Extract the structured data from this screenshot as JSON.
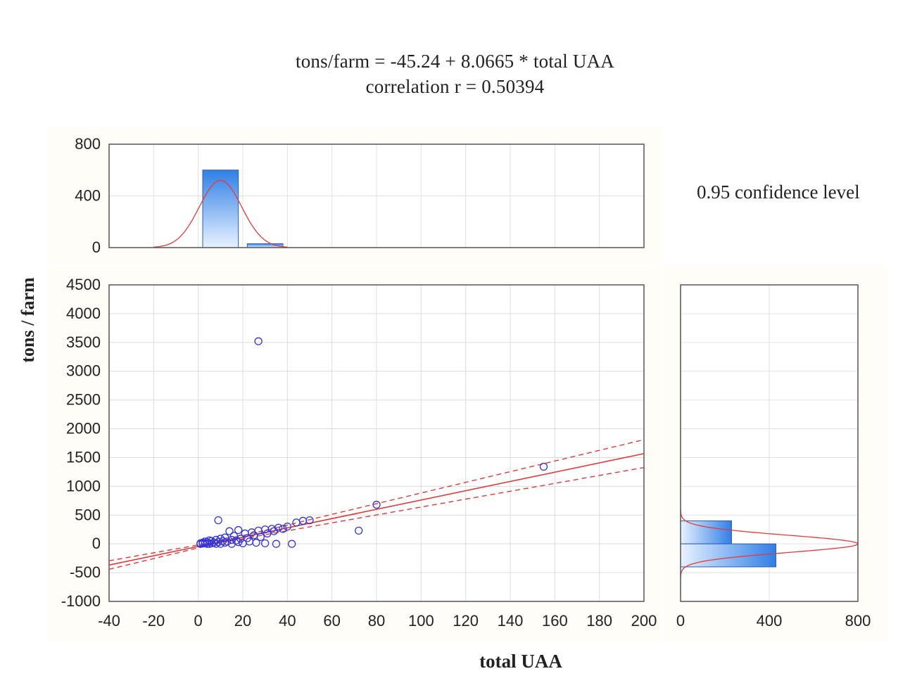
{
  "title_lines": [
    "tons/farm = -45.24 + 8.0665 * total UAA",
    "correlation r = 0.50394"
  ],
  "confidence_label": "0.95 confidence level",
  "chart_data": {
    "type": "scatter",
    "title": "tons/farm = -45.24 + 8.0665 * total UAA; correlation r = 0.50394",
    "xlabel": "total UAA",
    "ylabel": "tons / farm",
    "xlim": [
      -40,
      200
    ],
    "ylim": [
      -1000,
      4500
    ],
    "x_ticks": [
      -40,
      -20,
      0,
      20,
      40,
      60,
      80,
      100,
      120,
      140,
      160,
      180,
      200
    ],
    "y_ticks": [
      -1000,
      -500,
      0,
      500,
      1000,
      1500,
      2000,
      2500,
      3000,
      3500,
      4000,
      4500
    ],
    "grid": true,
    "regression": {
      "intercept": -45.24,
      "slope": 8.0665,
      "r": 0.50394,
      "confidence_level": 0.95
    },
    "points": [
      [
        27,
        3520
      ],
      [
        155,
        1340
      ],
      [
        80,
        680
      ],
      [
        72,
        230
      ],
      [
        9,
        410
      ],
      [
        50,
        410
      ],
      [
        47,
        400
      ],
      [
        44,
        370
      ],
      [
        40,
        300
      ],
      [
        36,
        280
      ],
      [
        33,
        260
      ],
      [
        30,
        250
      ],
      [
        27,
        230
      ],
      [
        24,
        200
      ],
      [
        21,
        180
      ],
      [
        18,
        240
      ],
      [
        16,
        140
      ],
      [
        14,
        220
      ],
      [
        12,
        110
      ],
      [
        10,
        90
      ],
      [
        8,
        70
      ],
      [
        6,
        50
      ],
      [
        4,
        30
      ],
      [
        2,
        20
      ],
      [
        1,
        10
      ],
      [
        3,
        40
      ],
      [
        5,
        60
      ],
      [
        7,
        20
      ],
      [
        9,
        30
      ],
      [
        11,
        50
      ],
      [
        13,
        40
      ],
      [
        15,
        70
      ],
      [
        17,
        60
      ],
      [
        19,
        90
      ],
      [
        22,
        100
      ],
      [
        25,
        150
      ],
      [
        28,
        120
      ],
      [
        31,
        180
      ],
      [
        34,
        220
      ],
      [
        38,
        260
      ],
      [
        42,
        0
      ],
      [
        35,
        0
      ],
      [
        30,
        10
      ],
      [
        26,
        20
      ],
      [
        20,
        10
      ],
      [
        15,
        0
      ],
      [
        10,
        0
      ],
      [
        5,
        0
      ],
      [
        1,
        0
      ],
      [
        2,
        5
      ],
      [
        3,
        10
      ],
      [
        4,
        0
      ],
      [
        6,
        10
      ],
      [
        8,
        0
      ],
      [
        12,
        20
      ],
      [
        18,
        30
      ],
      [
        23,
        40
      ]
    ],
    "top_histogram": {
      "y_ticks": [
        0,
        400,
        800
      ],
      "ylim": [
        0,
        800
      ],
      "bins": [
        {
          "from": 2,
          "to": 18,
          "count": 600
        },
        {
          "from": 22,
          "to": 38,
          "count": 30
        }
      ],
      "normal_curve": {
        "mean": 10,
        "sd": 9.5,
        "peak": 520
      }
    },
    "right_histogram": {
      "x_ticks": [
        0,
        400,
        800
      ],
      "xlim": [
        0,
        800
      ],
      "bins": [
        {
          "from": 0,
          "to": 400,
          "count": 230
        },
        {
          "from": -400,
          "to": 0,
          "count": 430
        }
      ],
      "normal_curve": {
        "mean": 0,
        "sd": 150,
        "peak": 800
      }
    }
  }
}
